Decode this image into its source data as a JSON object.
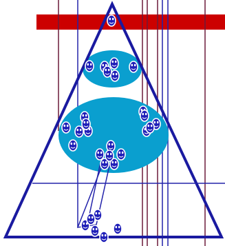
{
  "colors": {
    "background": "#ffffff",
    "banner": "#cc0000",
    "triangle_outline": "#1a1aa0",
    "ellipse_fill": "#0a9fcf",
    "vertical_lines_dark": "#6b1a3a",
    "vertical_lines_blue": "#2222aa",
    "smiley_fill": "#1f1fb8",
    "smiley_outline": "#ffffff"
  },
  "icons": {
    "person": "smiley-face-icon",
    "group": "population-ellipse"
  },
  "counts": {
    "apex_people": 1,
    "upper_group_people": 6,
    "lower_group_people": 17,
    "base_people": 6
  }
}
